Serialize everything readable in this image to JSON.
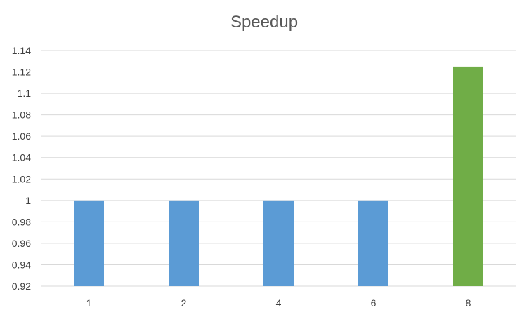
{
  "chart_data": {
    "type": "bar",
    "title": "Speedup",
    "xlabel": "",
    "ylabel": "",
    "categories": [
      "1",
      "2",
      "4",
      "6",
      "8"
    ],
    "values": [
      1,
      1,
      1,
      1,
      1.125
    ],
    "bar_colors": [
      "#5b9bd5",
      "#5b9bd5",
      "#5b9bd5",
      "#5b9bd5",
      "#70ad47"
    ],
    "ylim": [
      0.92,
      1.14
    ],
    "yticks": [
      "0.92",
      "0.94",
      "0.96",
      "0.98",
      "1",
      "1.02",
      "1.04",
      "1.06",
      "1.08",
      "1.1",
      "1.12",
      "1.14"
    ],
    "grid": true,
    "legend": "none"
  }
}
